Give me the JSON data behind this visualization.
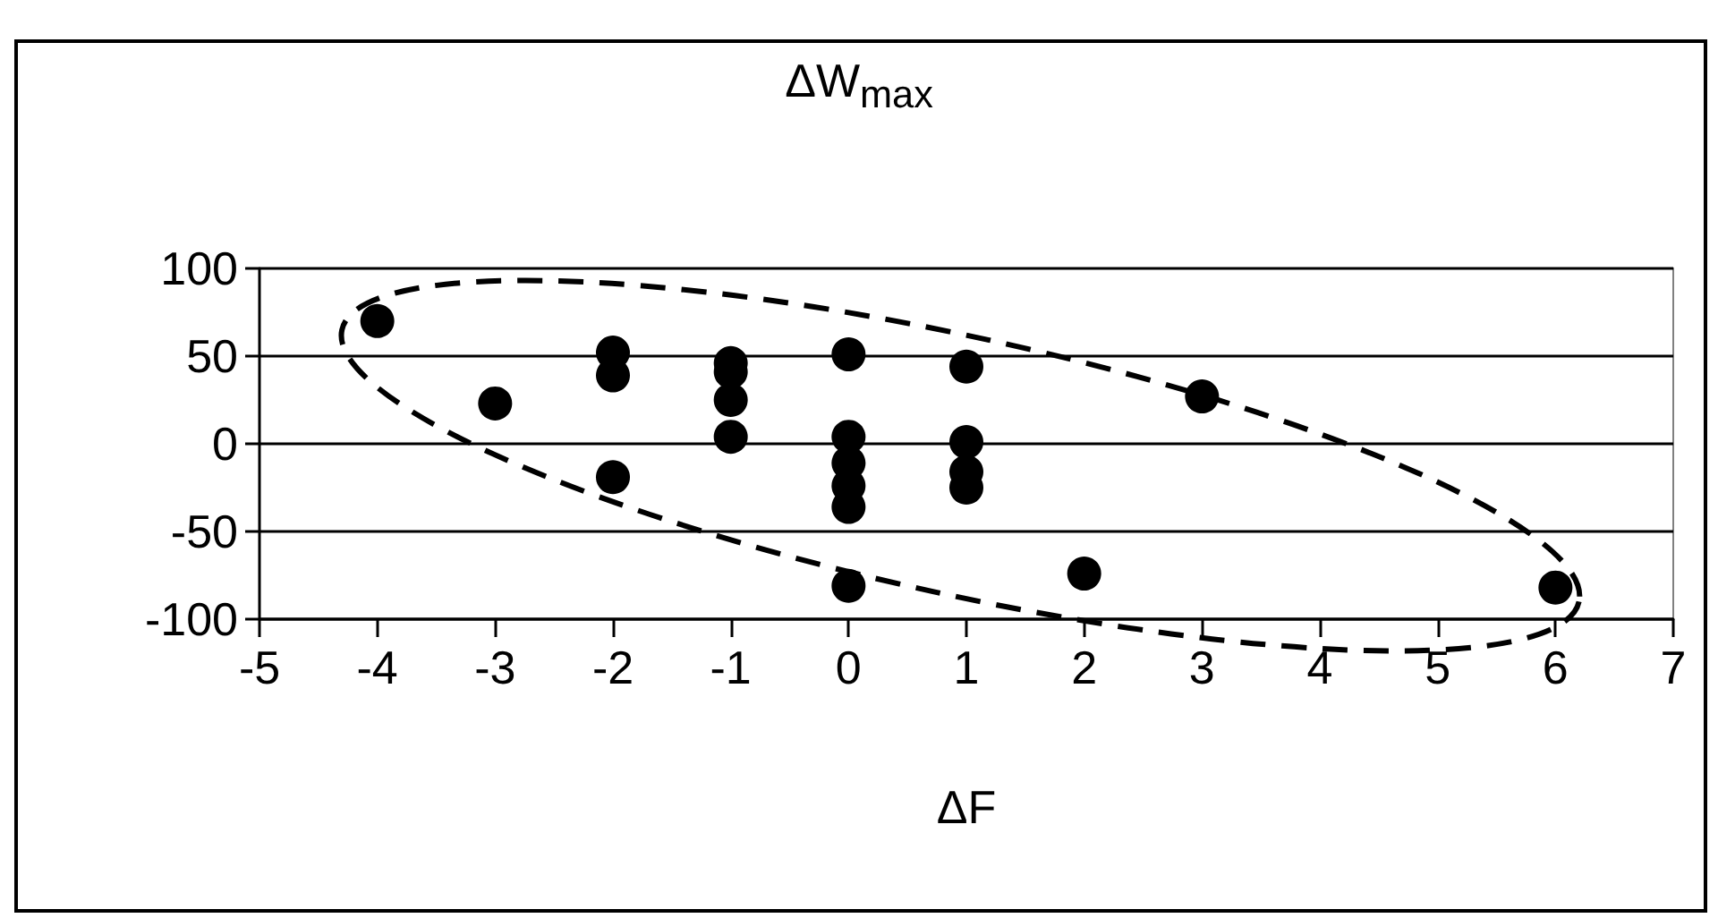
{
  "chart_data": {
    "type": "scatter",
    "title": "ΔW$_{max}$",
    "xlabel": "ΔF",
    "series": [
      {
        "color": "#000000",
        "x": [
          -4,
          -3,
          -2,
          -2,
          -2,
          -1,
          -1,
          -1,
          -1,
          0,
          0,
          0,
          0,
          0,
          0,
          1,
          1,
          1,
          1,
          2,
          3,
          6
        ],
        "values": [
          70,
          23,
          52,
          39,
          -19,
          46,
          41,
          25,
          4,
          51,
          4,
          -11,
          -24,
          -36,
          -81,
          44,
          1,
          -16,
          -25,
          -74,
          27,
          -82
        ]
      }
    ],
    "xlim": [
      -5,
      7
    ],
    "xticks": [
      -5,
      -4,
      -3,
      -2,
      -1,
      0,
      1,
      2,
      3,
      4,
      5,
      6,
      7
    ],
    "ylim": [
      -100,
      100
    ],
    "yticks": [
      -100,
      -50,
      0,
      50,
      100
    ],
    "grid": "y",
    "marker": "circle"
  }
}
